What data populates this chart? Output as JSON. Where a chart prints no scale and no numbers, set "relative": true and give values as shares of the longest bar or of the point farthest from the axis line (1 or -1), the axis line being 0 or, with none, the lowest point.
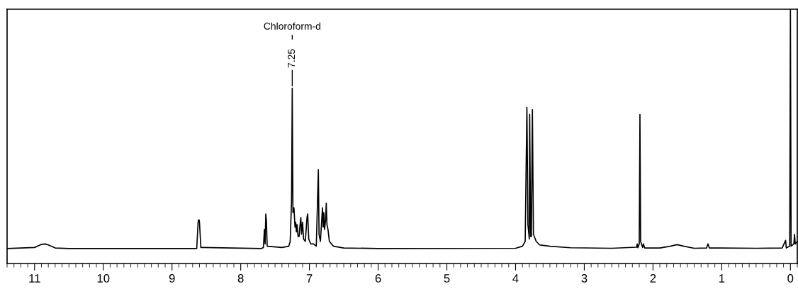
{
  "chart_data": {
    "type": "line",
    "relative": true,
    "tick_labels": "x",
    "grid": false,
    "legend": false,
    "marker": "none",
    "line_style": "solid",
    "xlim": [
      11.4,
      -0.1
    ],
    "xticks": [
      11,
      10,
      9,
      8,
      7,
      6,
      5,
      4,
      3,
      2,
      1,
      0
    ],
    "annotations": [
      {
        "text": "7.25",
        "x": 7.25,
        "y": 0.689
      },
      "Chloroform-d"
    ],
    "series": [
      {
        "color": "#000000",
        "x": [
          11.4,
          11.0,
          10.9,
          10.85,
          10.8,
          10.7,
          10.5,
          9.0,
          8.64,
          8.62,
          8.615,
          8.605,
          8.6,
          8.58,
          8.55,
          7.7,
          7.67,
          7.655,
          7.645,
          7.635,
          7.625,
          7.615,
          7.4,
          7.3,
          7.28,
          7.26,
          7.25,
          7.24,
          7.225,
          7.21,
          7.2,
          7.19,
          7.18,
          7.165,
          7.15,
          7.14,
          7.125,
          7.115,
          7.1,
          7.085,
          7.06,
          7.035,
          7.025,
          7.01,
          6.98,
          6.94,
          6.9,
          6.87,
          6.86,
          6.84,
          6.81,
          6.8,
          6.79,
          6.78,
          6.765,
          6.755,
          6.745,
          6.73,
          6.71,
          6.65,
          6.5,
          6.0,
          4.0,
          3.9,
          3.86,
          3.835,
          3.82,
          3.8,
          3.795,
          3.78,
          3.77,
          3.755,
          3.74,
          3.7,
          3.65,
          3.5,
          3.2,
          2.6,
          2.24,
          2.23,
          2.22,
          2.2,
          2.19,
          2.18,
          2.15,
          2.14,
          2.12,
          1.9,
          1.75,
          1.65,
          1.55,
          1.4,
          1.22,
          1.2,
          1.18,
          0.5,
          0.12,
          0.07,
          0.06,
          0.01,
          0.0,
          -0.01,
          -0.05,
          -0.06,
          -0.07,
          -0.1
        ],
        "values": [
          0.059,
          0.063,
          0.075,
          0.077,
          0.073,
          0.061,
          0.059,
          0.059,
          0.059,
          0.162,
          0.171,
          0.171,
          0.162,
          0.063,
          0.063,
          0.059,
          0.063,
          0.134,
          0.077,
          0.195,
          0.162,
          0.068,
          0.063,
          0.068,
          0.087,
          0.247,
          0.689,
          0.2,
          0.219,
          0.143,
          0.162,
          0.124,
          0.153,
          0.106,
          0.106,
          0.143,
          0.181,
          0.115,
          0.162,
          0.096,
          0.087,
          0.181,
          0.195,
          0.096,
          0.077,
          0.077,
          0.068,
          0.369,
          0.115,
          0.087,
          0.219,
          0.143,
          0.2,
          0.134,
          0.171,
          0.237,
          0.153,
          0.134,
          0.087,
          0.068,
          0.061,
          0.059,
          0.06,
          0.068,
          0.087,
          0.614,
          0.153,
          0.096,
          0.586,
          0.106,
          0.106,
          0.605,
          0.115,
          0.087,
          0.073,
          0.068,
          0.062,
          0.06,
          0.064,
          0.077,
          0.062,
          0.077,
          0.586,
          0.087,
          0.063,
          0.077,
          0.061,
          0.061,
          0.068,
          0.074,
          0.068,
          0.06,
          0.061,
          0.077,
          0.061,
          0.06,
          0.061,
          0.091,
          0.061,
          0.068,
          1,
          0.068,
          0.077,
          0.115,
          0.077,
          0.087
        ]
      }
    ]
  }
}
